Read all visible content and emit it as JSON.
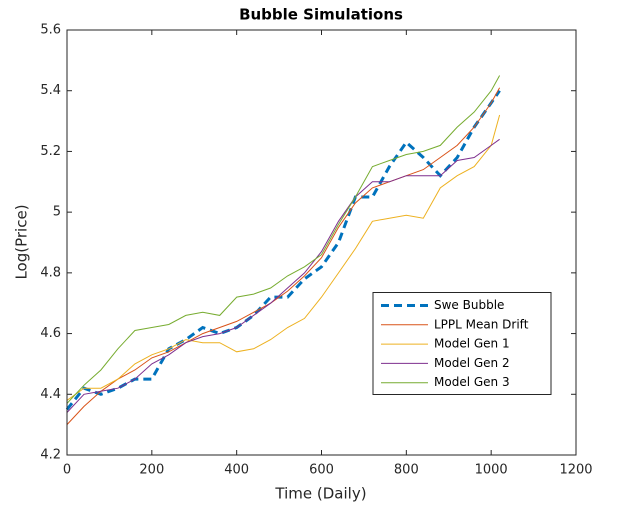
{
  "chart_data": {
    "type": "line",
    "title": "Bubble Simulations",
    "x_label": "Time (Daily)",
    "y_label": "Log(Price)",
    "x": [
      0,
      40,
      80,
      120,
      160,
      200,
      240,
      280,
      320,
      360,
      400,
      440,
      480,
      520,
      560,
      600,
      640,
      680,
      720,
      760,
      800,
      840,
      880,
      920,
      960,
      1000,
      1020
    ],
    "series": [
      {
        "name": "Swe Bubble",
        "color": "#0072bd",
        "line_style": "dashed",
        "values": [
          4.35,
          4.42,
          4.4,
          4.42,
          4.45,
          4.45,
          4.55,
          4.58,
          4.62,
          4.6,
          4.62,
          4.66,
          4.72,
          4.72,
          4.78,
          4.82,
          4.9,
          5.05,
          5.05,
          5.15,
          5.23,
          5.18,
          5.12,
          5.18,
          5.28,
          5.36,
          5.4
        ]
      },
      {
        "name": "LPPL Mean Drift",
        "color": "#d95319",
        "line_style": "solid",
        "values": [
          4.3,
          4.36,
          4.41,
          4.45,
          4.48,
          4.52,
          4.54,
          4.57,
          4.6,
          4.62,
          4.64,
          4.67,
          4.7,
          4.74,
          4.79,
          4.85,
          4.95,
          5.03,
          5.08,
          5.1,
          5.12,
          5.14,
          5.18,
          5.22,
          5.28,
          5.36,
          5.41
        ]
      },
      {
        "name": "Model Gen 1",
        "color": "#edb120",
        "line_style": "solid",
        "values": [
          4.38,
          4.42,
          4.42,
          4.45,
          4.5,
          4.53,
          4.55,
          4.58,
          4.57,
          4.57,
          4.54,
          4.55,
          4.58,
          4.62,
          4.65,
          4.72,
          4.8,
          4.88,
          4.97,
          4.98,
          4.99,
          4.98,
          5.08,
          5.12,
          5.15,
          5.22,
          5.32
        ]
      },
      {
        "name": "Model Gen 2",
        "color": "#7e2f8e",
        "line_style": "solid",
        "values": [
          4.34,
          4.4,
          4.41,
          4.42,
          4.45,
          4.5,
          4.53,
          4.57,
          4.59,
          4.6,
          4.62,
          4.66,
          4.7,
          4.75,
          4.8,
          4.87,
          4.97,
          5.05,
          5.1,
          5.1,
          5.12,
          5.12,
          5.12,
          5.17,
          5.18,
          5.22,
          5.24
        ]
      },
      {
        "name": "Model Gen 3",
        "color": "#77ac30",
        "line_style": "solid",
        "values": [
          4.37,
          4.43,
          4.48,
          4.55,
          4.61,
          4.62,
          4.63,
          4.66,
          4.67,
          4.66,
          4.72,
          4.73,
          4.75,
          4.79,
          4.82,
          4.86,
          4.96,
          5.05,
          5.15,
          5.17,
          5.19,
          5.2,
          5.22,
          5.28,
          5.33,
          5.4,
          5.45
        ]
      }
    ],
    "xlim": [
      0,
      1200
    ],
    "xticks": [
      0,
      200,
      400,
      600,
      800,
      1000,
      1200
    ],
    "ylim": [
      4.2,
      5.6
    ],
    "yticks": [
      4.2,
      4.4,
      4.6,
      4.8,
      5,
      5.2,
      5.4,
      5.6
    ],
    "grid": false,
    "legend_position": "east"
  }
}
